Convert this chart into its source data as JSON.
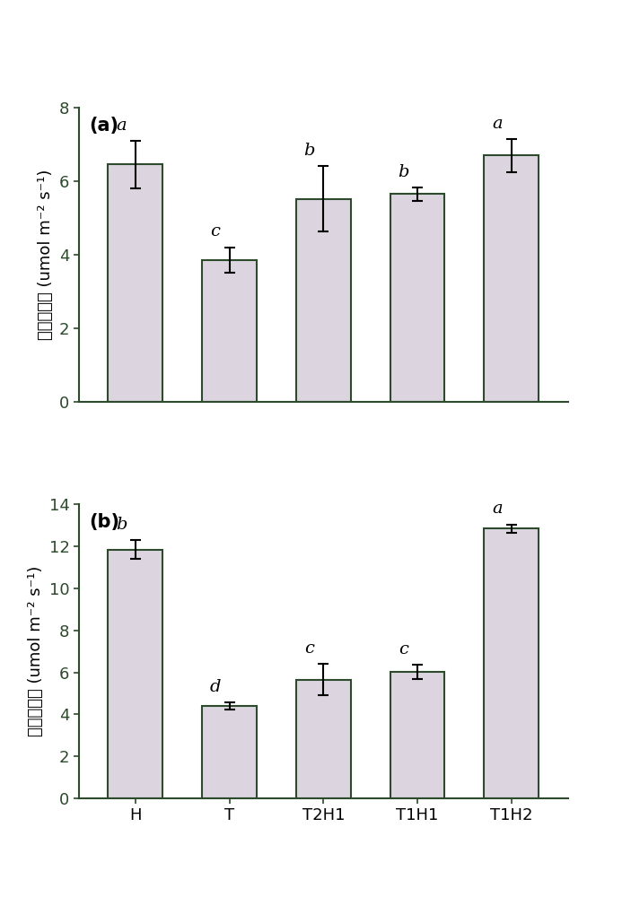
{
  "panel_a": {
    "categories": [
      "H",
      "T",
      "T2H1",
      "T1H1",
      "T1H2"
    ],
    "values": [
      6.45,
      3.85,
      5.52,
      5.65,
      6.7
    ],
    "errors": [
      0.65,
      0.35,
      0.9,
      0.18,
      0.45
    ],
    "letters": [
      "a",
      "c",
      "b",
      "b",
      "a"
    ],
    "ylim": [
      0,
      8
    ],
    "yticks": [
      0,
      2,
      4,
      6,
      8
    ],
    "ylabel": "净光合速率 (umol m⁻² s⁻¹)",
    "label": "(a)",
    "show_xticks": false
  },
  "panel_b": {
    "categories": [
      "H",
      "T",
      "T2H1",
      "T1H1",
      "T1H2"
    ],
    "values": [
      11.85,
      4.4,
      5.65,
      6.02,
      12.85
    ],
    "errors": [
      0.45,
      0.18,
      0.75,
      0.35,
      0.2
    ],
    "letters": [
      "b",
      "d",
      "c",
      "c",
      "a"
    ],
    "ylim": [
      0,
      14
    ],
    "yticks": [
      0,
      2,
      4,
      6,
      8,
      10,
      12,
      14
    ],
    "ylabel": "净光合速率 (umol m⁻² s⁻¹)",
    "label": "(b)",
    "show_xticks": true
  },
  "bar_color": "#dcd5e0",
  "bar_edge_color": "#2d4a2d",
  "bar_width": 0.58,
  "label_fontsize": 15,
  "tick_fontsize": 13,
  "letter_fontsize": 14,
  "ylabel_fontsize": 13,
  "axis_color": "#2d4a2d"
}
